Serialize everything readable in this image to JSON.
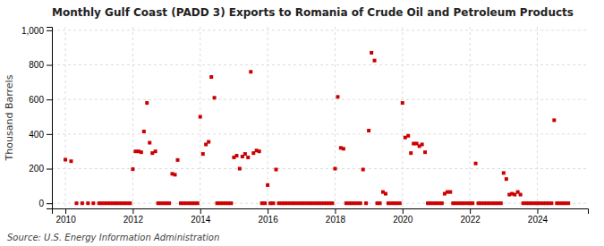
{
  "chart_data": {
    "type": "scatter",
    "title": "Monthly Gulf Coast (PADD 3) Exports to Romania of Crude Oil and Petroleum Products",
    "ylabel": "Thousand Barrels",
    "source": "Source: U.S. Energy Information Administration",
    "color": "#cc0000",
    "marker": "square",
    "grid": true,
    "xlim": [
      2009.6,
      2025.5
    ],
    "ylim": [
      -30,
      1020
    ],
    "xticks": [
      2010,
      2012,
      2014,
      2016,
      2018,
      2020,
      2022,
      2024
    ],
    "yticks": [
      0,
      200,
      400,
      600,
      800,
      {
        "value": 1000,
        "label": "1,000"
      }
    ],
    "x": [
      2010.0,
      2010.17,
      2010.33,
      2010.5,
      2010.67,
      2010.83,
      2011.0,
      2011.08,
      2011.17,
      2011.25,
      2011.33,
      2011.42,
      2011.5,
      2011.58,
      2011.67,
      2011.75,
      2011.83,
      2011.92,
      2012.0,
      2012.08,
      2012.17,
      2012.25,
      2012.33,
      2012.42,
      2012.5,
      2012.58,
      2012.67,
      2012.75,
      2012.83,
      2012.92,
      2013.0,
      2013.08,
      2013.17,
      2013.25,
      2013.33,
      2013.42,
      2013.5,
      2013.58,
      2013.67,
      2013.75,
      2013.83,
      2013.92,
      2014.0,
      2014.08,
      2014.17,
      2014.25,
      2014.33,
      2014.42,
      2014.5,
      2014.58,
      2014.67,
      2014.75,
      2014.83,
      2014.92,
      2015.0,
      2015.08,
      2015.17,
      2015.25,
      2015.33,
      2015.42,
      2015.5,
      2015.58,
      2015.67,
      2015.75,
      2015.83,
      2015.92,
      2016.0,
      2016.08,
      2016.17,
      2016.25,
      2016.33,
      2016.42,
      2016.5,
      2016.58,
      2016.67,
      2016.75,
      2016.83,
      2016.92,
      2017.0,
      2017.08,
      2017.17,
      2017.25,
      2017.33,
      2017.42,
      2017.5,
      2017.58,
      2017.67,
      2017.75,
      2017.83,
      2017.92,
      2018.0,
      2018.08,
      2018.17,
      2018.25,
      2018.33,
      2018.42,
      2018.5,
      2018.58,
      2018.67,
      2018.75,
      2018.83,
      2018.92,
      2019.0,
      2019.08,
      2019.17,
      2019.25,
      2019.33,
      2019.42,
      2019.5,
      2019.58,
      2019.67,
      2019.75,
      2019.83,
      2019.92,
      2020.0,
      2020.08,
      2020.17,
      2020.25,
      2020.33,
      2020.42,
      2020.5,
      2020.58,
      2020.67,
      2020.75,
      2020.83,
      2020.92,
      2021.0,
      2021.08,
      2021.17,
      2021.25,
      2021.33,
      2021.42,
      2021.5,
      2021.58,
      2021.67,
      2021.75,
      2021.83,
      2021.92,
      2022.0,
      2022.08,
      2022.17,
      2022.25,
      2022.33,
      2022.42,
      2022.5,
      2022.58,
      2022.67,
      2022.75,
      2022.83,
      2022.92,
      2023.0,
      2023.08,
      2023.17,
      2023.25,
      2023.33,
      2023.42,
      2023.5,
      2023.58,
      2023.67,
      2023.75,
      2023.83,
      2023.92,
      2024.0,
      2024.08,
      2024.17,
      2024.25,
      2024.33,
      2024.42,
      2024.5,
      2024.58,
      2024.67,
      2024.75,
      2024.83,
      2024.92
    ],
    "values": [
      252,
      243,
      0,
      0,
      0,
      0,
      0,
      0,
      0,
      0,
      0,
      0,
      0,
      0,
      0,
      0,
      0,
      0,
      197,
      300,
      300,
      295,
      415,
      580,
      350,
      290,
      300,
      0,
      0,
      0,
      0,
      0,
      170,
      165,
      250,
      0,
      0,
      0,
      0,
      0,
      0,
      0,
      500,
      285,
      340,
      355,
      730,
      610,
      0,
      0,
      0,
      0,
      0,
      0,
      265,
      275,
      200,
      270,
      285,
      265,
      760,
      290,
      305,
      300,
      0,
      0,
      105,
      0,
      0,
      195,
      0,
      0,
      0,
      0,
      0,
      0,
      0,
      0,
      0,
      0,
      0,
      0,
      0,
      0,
      0,
      0,
      0,
      0,
      0,
      0,
      200,
      615,
      320,
      315,
      0,
      0,
      0,
      0,
      0,
      0,
      195,
      0,
      420,
      870,
      825,
      0,
      0,
      65,
      55,
      0,
      0,
      0,
      0,
      0,
      580,
      380,
      390,
      290,
      345,
      345,
      330,
      340,
      295,
      0,
      0,
      0,
      0,
      0,
      0,
      55,
      65,
      65,
      0,
      0,
      0,
      0,
      0,
      0,
      0,
      0,
      230,
      0,
      0,
      0,
      0,
      0,
      0,
      0,
      0,
      0,
      175,
      140,
      50,
      55,
      50,
      65,
      50,
      0,
      0,
      0,
      0,
      0,
      0,
      0,
      0,
      0,
      0,
      0,
      480,
      0,
      0,
      0,
      0,
      0
    ]
  }
}
